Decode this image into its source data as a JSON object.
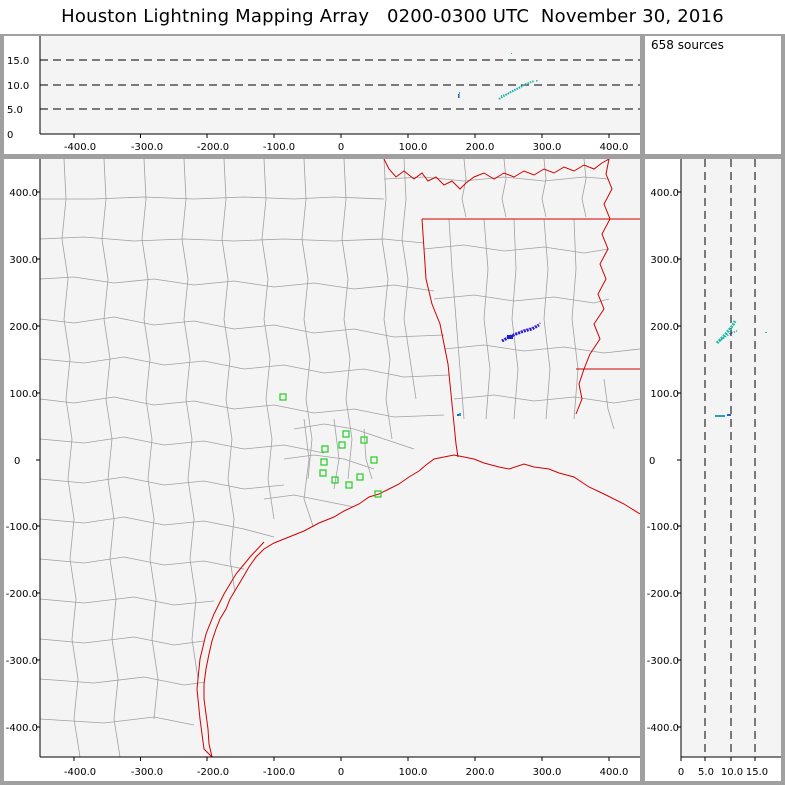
{
  "title": "Houston Lightning Mapping Array   0200-0300 UTC  November 30, 2016",
  "source_count_label": "658 sources",
  "colors": {
    "frame": "#a0a0a0",
    "map_background": "#f4f4f4",
    "county_lines": "#a0a0a0",
    "state_coast_lines": "#d20000",
    "stations": "#22cc22",
    "source_blue": "#1a20d0",
    "source_purple": "#8a1ad0",
    "source_teal": "#20c0a0"
  },
  "top_panel": {
    "y_ticks": [
      "0",
      "5.0",
      "10.0",
      "15.0"
    ],
    "x_ticks": [
      "-400.0",
      "-300.0",
      "-200.0",
      "-100.0",
      "0",
      "100.0",
      "200.0",
      "300.0",
      "400.0"
    ]
  },
  "map_panel": {
    "y_ticks": [
      "400.0",
      "300.0",
      "200.0",
      "100.0",
      "0",
      "-100.0",
      "-200.0",
      "-300.0",
      "-400.0"
    ],
    "x_ticks": [
      "-400.0",
      "-300.0",
      "-200.0",
      "-100.0",
      "0",
      "100.0",
      "200.0",
      "300.0",
      "400.0"
    ]
  },
  "right_panel": {
    "y_ticks": [
      "400.0",
      "300.0",
      "200.0",
      "100.0",
      "0",
      "-100.0",
      "-200.0",
      "-300.0",
      "-400.0"
    ],
    "x_ticks": [
      "0",
      "5.0",
      "10.0",
      "15.0"
    ]
  }
}
